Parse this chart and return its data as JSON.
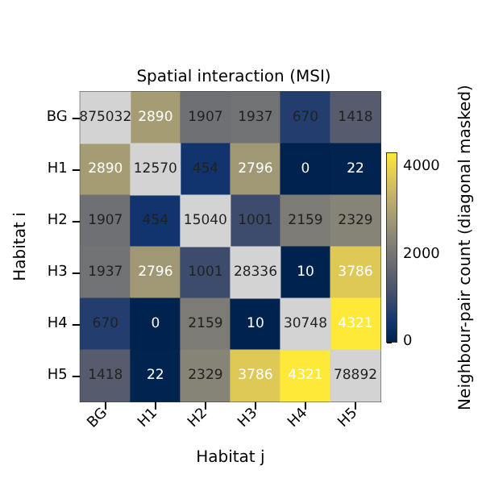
{
  "chart_data": {
    "type": "heatmap",
    "title": "Spatial interaction (MSI)",
    "xlabel": "Habitat j",
    "ylabel": "Habitat i",
    "clabel": "Neighbour-pair count (diagonal masked)",
    "categories": [
      "BG",
      "H1",
      "H2",
      "H3",
      "H4",
      "H5"
    ],
    "y_categories": [
      "BG",
      "H1",
      "H2",
      "H3",
      "H4",
      "H5"
    ],
    "cells": [
      [
        null,
        2890,
        1907,
        1937,
        670,
        1418
      ],
      [
        2890,
        null,
        454,
        2796,
        0,
        22
      ],
      [
        1907,
        454,
        null,
        1001,
        2159,
        2329
      ],
      [
        1937,
        2796,
        1001,
        null,
        10,
        3786
      ],
      [
        670,
        0,
        2159,
        10,
        null,
        4321
      ],
      [
        1418,
        22,
        2329,
        3786,
        4321,
        null
      ]
    ],
    "cell_labels": [
      [
        "875032",
        "2890",
        "1907",
        "1937",
        "670",
        "1418"
      ],
      [
        "2890",
        "12570",
        "454",
        "2796",
        "0",
        "22"
      ],
      [
        "1907",
        "454",
        "15040",
        "1001",
        "2159",
        "2329"
      ],
      [
        "1937",
        "2796",
        "1001",
        "28336",
        "10",
        "3786"
      ],
      [
        "670",
        "0",
        "2159",
        "10",
        "30748",
        "4321"
      ],
      [
        "1418",
        "22",
        "2329",
        "3786",
        "4321",
        "78892"
      ]
    ],
    "clim": [
      0,
      4321
    ],
    "cticks": [
      0,
      2000,
      4000
    ]
  }
}
